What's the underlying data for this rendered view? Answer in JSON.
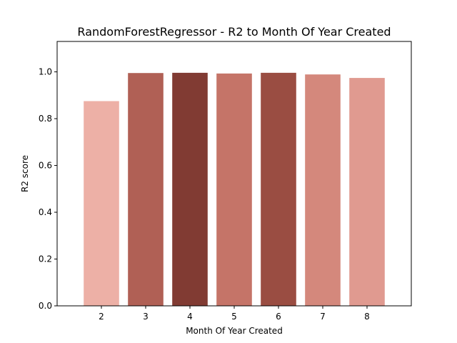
{
  "chart_data": {
    "type": "bar",
    "title": "RandomForestRegressor - R2 to Month Of Year Created",
    "xlabel": "Month Of Year Created",
    "ylabel": "R2 score",
    "categories": [
      "2",
      "3",
      "4",
      "5",
      "6",
      "7",
      "8"
    ],
    "values": [
      0.875,
      0.995,
      0.996,
      0.993,
      0.996,
      0.989,
      0.974
    ],
    "colors": [
      "#edb0a6",
      "#b06055",
      "#813b33",
      "#c57468",
      "#9a4d42",
      "#d4887c",
      "#e09a90"
    ],
    "x_range": [
      1,
      9
    ],
    "ylim": [
      0,
      1.13
    ],
    "yticks": [
      0.0,
      0.2,
      0.4,
      0.6,
      0.8,
      1.0
    ],
    "ytick_labels": [
      "0.0",
      "0.2",
      "0.4",
      "0.6",
      "0.8",
      "1.0"
    ],
    "grid": false
  }
}
